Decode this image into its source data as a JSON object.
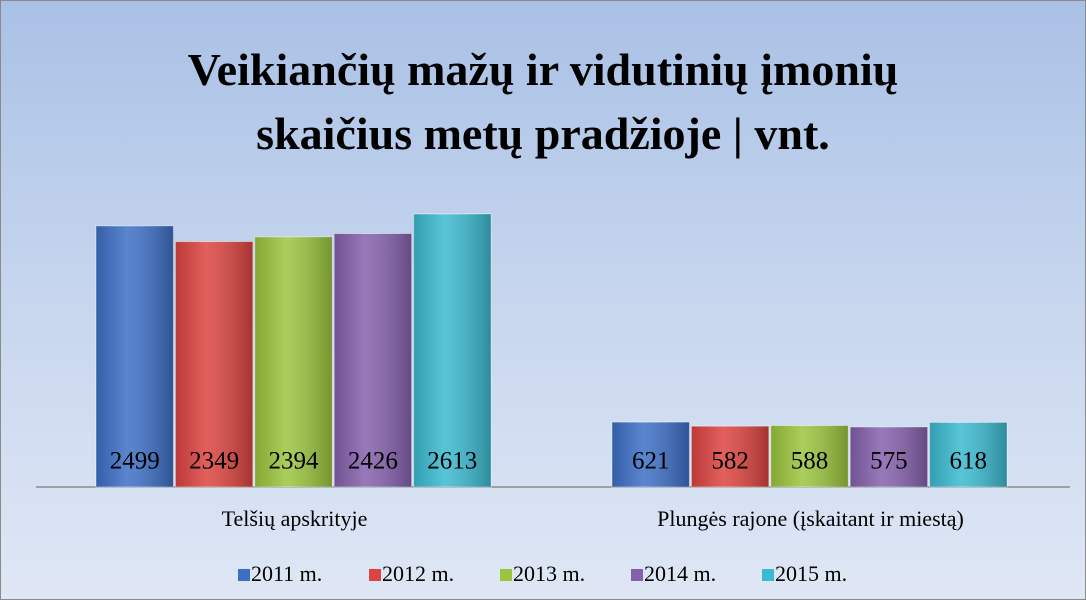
{
  "chart_data": {
    "type": "bar",
    "title": "Veikiančių mažų ir vidutinių įmonių skaičius metų pradžioje | vnt.",
    "categories": [
      "Telšių apskrityje",
      "Plungės rajone (įskaitant ir miestą)"
    ],
    "series": [
      {
        "name": "2011 m.",
        "color": "#3d6fc6",
        "values": [
          2499,
          621
        ]
      },
      {
        "name": "2012 m.",
        "color": "#dc4440",
        "values": [
          2349,
          582
        ]
      },
      {
        "name": "2013 m.",
        "color": "#9cc53e",
        "values": [
          2394,
          588
        ]
      },
      {
        "name": "2014 m.",
        "color": "#8561ad",
        "values": [
          2426,
          575
        ]
      },
      {
        "name": "2015 m.",
        "color": "#3bbad0",
        "values": [
          2613,
          618
        ]
      }
    ]
  }
}
